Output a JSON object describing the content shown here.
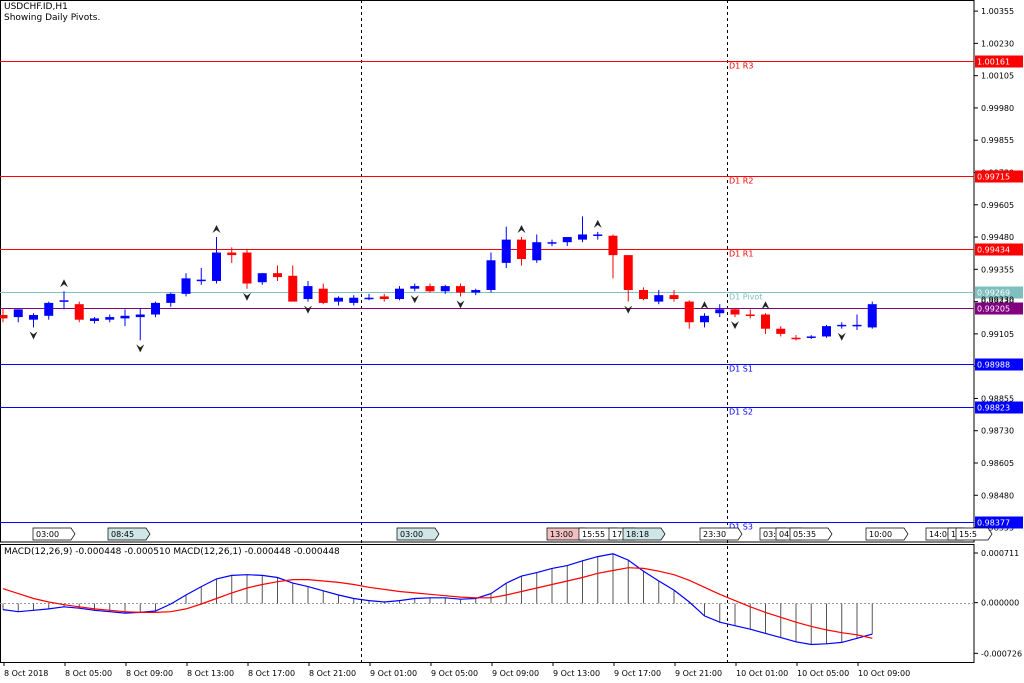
{
  "header": {
    "symbol": "USDCHF.ID,H1",
    "indicator_note": "Showing Daily Pivots."
  },
  "macd_header": "MACD(12,26,9) -0.000448 -0.000510 MACD(12,26,1) -0.000448 -0.000448",
  "colors": {
    "bull": "#0000FF",
    "bear": "#FF0000",
    "resistance": "#FF0000",
    "support": "#0000FF",
    "pivot": "#7FBFBF",
    "current": "#800080",
    "signal": "#FF0000",
    "macd": "#0000FF"
  },
  "chart_data": {
    "type": "candlestick",
    "symbol": "USDCHF.ID",
    "timeframe": "H1",
    "y_axis_ticks": [
      "1.00355",
      "1.00230",
      "1.00105",
      "0.99980",
      "0.99855",
      "0.99730",
      "0.99605",
      "0.99480",
      "0.99355",
      "0.99230",
      "0.99105",
      "0.98980",
      "0.98855",
      "0.98730",
      "0.98605",
      "0.98480",
      "0.98355"
    ],
    "y_axis_values": [
      1.00355,
      1.0023,
      1.00105,
      0.9998,
      0.99855,
      0.9973,
      0.99605,
      0.9948,
      0.99355,
      0.9923,
      0.99105,
      0.9898,
      0.98855,
      0.9873,
      0.98605,
      0.9848,
      0.98355
    ],
    "ylim": [
      0.98299,
      1.00398
    ],
    "x_axis_ticks": [
      "8 Oct 2018",
      "8 Oct 05:00",
      "8 Oct 09:00",
      "8 Oct 13:00",
      "8 Oct 17:00",
      "8 Oct 21:00",
      "9 Oct 01:00",
      "9 Oct 05:00",
      "9 Oct 09:00",
      "9 Oct 13:00",
      "9 Oct 17:00",
      "9 Oct 21:00",
      "10 Oct 01:00",
      "10 Oct 05:00",
      "10 Oct 09:00"
    ],
    "pivot_levels": [
      {
        "label": "D1 R3",
        "value": 1.00161,
        "price_label": "1.00161",
        "kind": "resistance"
      },
      {
        "label": "D1 R2",
        "value": 0.99715,
        "price_label": "0.99715",
        "kind": "resistance"
      },
      {
        "label": "D1 R1",
        "value": 0.99434,
        "price_label": "0.99434",
        "kind": "resistance"
      },
      {
        "label": "D1 Pivot",
        "value": 0.99269,
        "price_label": "0.99269",
        "kind": "pivot"
      },
      {
        "label": "D1 S1",
        "value": 0.98988,
        "price_label": "0.98988",
        "kind": "support"
      },
      {
        "label": "D1 S2",
        "value": 0.98823,
        "price_label": "0.98823",
        "kind": "support"
      },
      {
        "label": "D1 S3",
        "value": 0.98377,
        "price_label": "0.98377",
        "kind": "support"
      }
    ],
    "current_price": {
      "value": 0.99205,
      "price_label": "0.99205"
    },
    "extra_axis_label": "0.99230",
    "time_markers": [
      "03:00",
      "08:45",
      "03:00",
      "13:00",
      "15:55",
      "17:",
      "18:18",
      "23:30",
      "03:",
      "04:",
      "05:35",
      "10:00",
      "14:00",
      "1",
      "15:5"
    ],
    "session_separators_index": [
      23,
      47
    ],
    "candles": [
      {
        "o": 0.99178,
        "h": 0.99205,
        "l": 0.9915,
        "c": 0.99165
      },
      {
        "o": 0.9917,
        "h": 0.992,
        "l": 0.9915,
        "c": 0.992
      },
      {
        "o": 0.9916,
        "h": 0.99185,
        "l": 0.9913,
        "c": 0.99178
      },
      {
        "o": 0.99175,
        "h": 0.9923,
        "l": 0.9916,
        "c": 0.99225
      },
      {
        "o": 0.9923,
        "h": 0.9927,
        "l": 0.992,
        "c": 0.99235
      },
      {
        "o": 0.9922,
        "h": 0.9923,
        "l": 0.9915,
        "c": 0.9916
      },
      {
        "o": 0.99155,
        "h": 0.9917,
        "l": 0.99145,
        "c": 0.99165
      },
      {
        "o": 0.9916,
        "h": 0.9918,
        "l": 0.9915,
        "c": 0.9917
      },
      {
        "o": 0.99165,
        "h": 0.992,
        "l": 0.99135,
        "c": 0.99175
      },
      {
        "o": 0.9917,
        "h": 0.99205,
        "l": 0.9908,
        "c": 0.9918
      },
      {
        "o": 0.9918,
        "h": 0.9923,
        "l": 0.9917,
        "c": 0.99225
      },
      {
        "o": 0.99225,
        "h": 0.99265,
        "l": 0.9921,
        "c": 0.9926
      },
      {
        "o": 0.9926,
        "h": 0.9934,
        "l": 0.9925,
        "c": 0.9932
      },
      {
        "o": 0.9931,
        "h": 0.9936,
        "l": 0.99295,
        "c": 0.99315
      },
      {
        "o": 0.9931,
        "h": 0.9948,
        "l": 0.993,
        "c": 0.9942
      },
      {
        "o": 0.9942,
        "h": 0.9944,
        "l": 0.9938,
        "c": 0.9941
      },
      {
        "o": 0.9942,
        "h": 0.9943,
        "l": 0.9928,
        "c": 0.993
      },
      {
        "o": 0.99305,
        "h": 0.9934,
        "l": 0.99295,
        "c": 0.9934
      },
      {
        "o": 0.9934,
        "h": 0.9937,
        "l": 0.9931,
        "c": 0.99325
      },
      {
        "o": 0.9933,
        "h": 0.9937,
        "l": 0.9925,
        "c": 0.9923
      },
      {
        "o": 0.9924,
        "h": 0.9931,
        "l": 0.9923,
        "c": 0.9929
      },
      {
        "o": 0.9928,
        "h": 0.993,
        "l": 0.9922,
        "c": 0.99225
      },
      {
        "o": 0.9923,
        "h": 0.9925,
        "l": 0.99215,
        "c": 0.99245
      },
      {
        "o": 0.99225,
        "h": 0.99255,
        "l": 0.99215,
        "c": 0.99245
      },
      {
        "o": 0.99245,
        "h": 0.9926,
        "l": 0.99235,
        "c": 0.99245
      },
      {
        "o": 0.9925,
        "h": 0.9926,
        "l": 0.9923,
        "c": 0.9924
      },
      {
        "o": 0.9924,
        "h": 0.9929,
        "l": 0.99235,
        "c": 0.9928
      },
      {
        "o": 0.9928,
        "h": 0.993,
        "l": 0.9927,
        "c": 0.9929
      },
      {
        "o": 0.9929,
        "h": 0.993,
        "l": 0.99265,
        "c": 0.9927
      },
      {
        "o": 0.9927,
        "h": 0.99295,
        "l": 0.9926,
        "c": 0.9929
      },
      {
        "o": 0.9929,
        "h": 0.993,
        "l": 0.9925,
        "c": 0.99265
      },
      {
        "o": 0.99265,
        "h": 0.9928,
        "l": 0.99255,
        "c": 0.99275
      },
      {
        "o": 0.99275,
        "h": 0.9942,
        "l": 0.99265,
        "c": 0.9939
      },
      {
        "o": 0.9938,
        "h": 0.9952,
        "l": 0.9936,
        "c": 0.9947
      },
      {
        "o": 0.9947,
        "h": 0.9948,
        "l": 0.9937,
        "c": 0.99395
      },
      {
        "o": 0.9939,
        "h": 0.9949,
        "l": 0.9938,
        "c": 0.9946
      },
      {
        "o": 0.99455,
        "h": 0.9947,
        "l": 0.99445,
        "c": 0.9946
      },
      {
        "o": 0.9946,
        "h": 0.9948,
        "l": 0.99445,
        "c": 0.9948
      },
      {
        "o": 0.9947,
        "h": 0.9956,
        "l": 0.9946,
        "c": 0.9949
      },
      {
        "o": 0.9949,
        "h": 0.995,
        "l": 0.9947,
        "c": 0.9949
      },
      {
        "o": 0.99485,
        "h": 0.9949,
        "l": 0.9932,
        "c": 0.9941
      },
      {
        "o": 0.9941,
        "h": 0.9941,
        "l": 0.9923,
        "c": 0.99275
      },
      {
        "o": 0.99275,
        "h": 0.99285,
        "l": 0.99235,
        "c": 0.9924
      },
      {
        "o": 0.9923,
        "h": 0.99275,
        "l": 0.9922,
        "c": 0.99255
      },
      {
        "o": 0.99255,
        "h": 0.99275,
        "l": 0.9923,
        "c": 0.9924
      },
      {
        "o": 0.9923,
        "h": 0.99235,
        "l": 0.99125,
        "c": 0.9915
      },
      {
        "o": 0.9915,
        "h": 0.99185,
        "l": 0.9913,
        "c": 0.99175
      },
      {
        "o": 0.99185,
        "h": 0.9922,
        "l": 0.9917,
        "c": 0.992
      },
      {
        "o": 0.992,
        "h": 0.99205,
        "l": 0.9917,
        "c": 0.9918
      },
      {
        "o": 0.9918,
        "h": 0.992,
        "l": 0.99165,
        "c": 0.99175
      },
      {
        "o": 0.9918,
        "h": 0.99185,
        "l": 0.99105,
        "c": 0.99125
      },
      {
        "o": 0.99125,
        "h": 0.99135,
        "l": 0.99095,
        "c": 0.99105
      },
      {
        "o": 0.9909,
        "h": 0.991,
        "l": 0.9908,
        "c": 0.99085
      },
      {
        "o": 0.9909,
        "h": 0.991,
        "l": 0.99085,
        "c": 0.99095
      },
      {
        "o": 0.99095,
        "h": 0.9914,
        "l": 0.9909,
        "c": 0.99135
      },
      {
        "o": 0.99135,
        "h": 0.9915,
        "l": 0.99125,
        "c": 0.9914
      },
      {
        "o": 0.9914,
        "h": 0.9918,
        "l": 0.9912,
        "c": 0.9914
      },
      {
        "o": 0.9913,
        "h": 0.9923,
        "l": 0.99125,
        "c": 0.9922
      }
    ],
    "fractals_up": [
      4,
      14,
      34,
      39,
      46,
      50
    ],
    "fractals_down": [
      2,
      9,
      16,
      20,
      27,
      30,
      41,
      48,
      55
    ],
    "macd_panel": {
      "title": "MACD(12,26,9) -0.000448 -0.000510 MACD(12,26,1) -0.000448 -0.000448",
      "y_axis_ticks": [
        "0.000711",
        "0.000000",
        "-0.000726"
      ],
      "y_axis_values": [
        0.000711,
        0.0,
        -0.000726
      ],
      "ylim": [
        -0.00085,
        0.00084
      ],
      "histogram": [
        -0.0001,
        -0.00013,
        -0.00011,
        -9e-05,
        -6e-05,
        -8e-05,
        -0.00011,
        -0.00013,
        -0.00015,
        -0.00014,
        -0.00012,
        -2e-05,
        0.00011,
        0.00023,
        0.00034,
        0.00039,
        0.0004,
        0.00039,
        0.00036,
        0.00028,
        0.00023,
        0.00017,
        0.00011,
        6e-05,
        3e-05,
        1e-05,
        3e-05,
        6e-05,
        7e-05,
        7e-05,
        5e-05,
        6e-05,
        0.00013,
        0.00028,
        0.00038,
        0.00043,
        0.00049,
        0.00053,
        0.0006,
        0.00066,
        0.0007,
        0.00061,
        0.00045,
        0.00031,
        0.00018,
        1e-05,
        -0.00019,
        -0.00028,
        -0.00033,
        -0.00038,
        -0.00044,
        -0.0005,
        -0.00056,
        -0.0006,
        -0.00059,
        -0.00057,
        -0.00051,
        -0.00045
      ],
      "macd_line": [
        -0.0001,
        -0.00013,
        -0.00011,
        -9e-05,
        -6e-05,
        -8e-05,
        -0.00011,
        -0.00013,
        -0.00015,
        -0.00014,
        -0.00012,
        -2e-05,
        0.00011,
        0.00023,
        0.00034,
        0.00039,
        0.0004,
        0.00039,
        0.00036,
        0.00028,
        0.00023,
        0.00017,
        0.00011,
        6e-05,
        3e-05,
        1e-05,
        3e-05,
        6e-05,
        7e-05,
        7e-05,
        5e-05,
        6e-05,
        0.00013,
        0.00028,
        0.00038,
        0.00043,
        0.00049,
        0.00053,
        0.0006,
        0.00066,
        0.0007,
        0.00061,
        0.00045,
        0.00031,
        0.00018,
        1e-05,
        -0.00019,
        -0.00028,
        -0.00033,
        -0.00038,
        -0.00044,
        -0.0005,
        -0.00056,
        -0.0006,
        -0.00059,
        -0.00057,
        -0.00051,
        -0.00045
      ],
      "signal_line": [
        0.0002,
        0.00013,
        6e-05,
        1e-05,
        -3e-05,
        -6e-05,
        -9e-05,
        -0.00011,
        -0.00013,
        -0.00014,
        -0.00014,
        -0.00013,
        -9e-05,
        -2e-05,
        6e-05,
        0.00014,
        0.00021,
        0.00026,
        0.0003,
        0.00033,
        0.00033,
        0.00031,
        0.00029,
        0.00026,
        0.00022,
        0.00019,
        0.00016,
        0.00014,
        0.00012,
        0.0001,
        8e-05,
        7e-05,
        7e-05,
        0.00011,
        0.00016,
        0.00021,
        0.00026,
        0.00031,
        0.00036,
        0.00042,
        0.00046,
        0.0005,
        0.00049,
        0.00045,
        0.0004,
        0.00032,
        0.00022,
        0.00012,
        3e-05,
        -6e-05,
        -0.00014,
        -0.00021,
        -0.00028,
        -0.00034,
        -0.00039,
        -0.00043,
        -0.00046,
        -0.00051
      ]
    }
  }
}
